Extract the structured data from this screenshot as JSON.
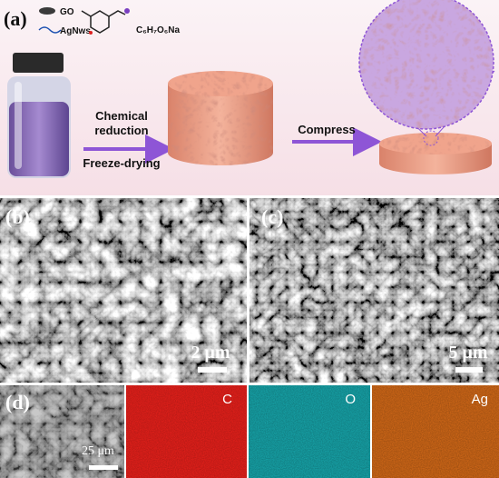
{
  "panel_a": {
    "label": "(a)",
    "legend": [
      "GO",
      "AgNws"
    ],
    "formula": "C₆H₇O₆Na",
    "step_1": [
      "Chemical",
      "reduction"
    ],
    "step_2": "Freeze-drying",
    "step_3": "Compress"
  },
  "panel_b": {
    "label": "(b)",
    "scale": "2 μm"
  },
  "panel_c": {
    "label": "(c)",
    "scale": "5 μm"
  },
  "panel_d": {
    "label": "(d)",
    "scale": "25 μm",
    "maps": [
      "C",
      "O",
      "Ag"
    ]
  }
}
